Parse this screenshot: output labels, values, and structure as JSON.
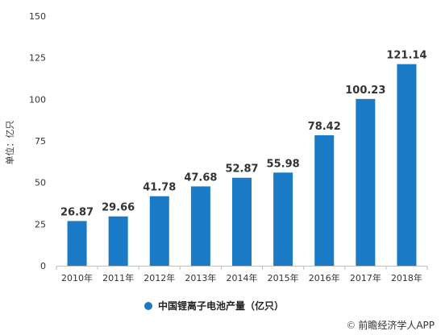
{
  "chart_data": {
    "type": "bar",
    "categories": [
      "2010年",
      "2011年",
      "2012年",
      "2013年",
      "2014年",
      "2015年",
      "2016年",
      "2017年",
      "2018年"
    ],
    "series": [
      {
        "name": "中国锂离子电池产量（亿只）",
        "values": [
          26.87,
          29.66,
          41.78,
          47.68,
          52.87,
          55.98,
          78.42,
          100.23,
          121.14
        ],
        "color": "#1a7ac6"
      }
    ],
    "data_labels": [
      "26.87",
      "29.66",
      "41.78",
      "47.68",
      "52.87",
      "55.98",
      "78.42",
      "100.23",
      "121.14"
    ],
    "ylabel": "单位：亿只",
    "ylim": [
      0,
      150
    ],
    "yticks": [
      0,
      25,
      50,
      75,
      100,
      125,
      150
    ],
    "grid": false,
    "legend_position": "bottom-center"
  },
  "source": {
    "text": "前瞻经济学人APP",
    "icon": "copyright-icon"
  }
}
